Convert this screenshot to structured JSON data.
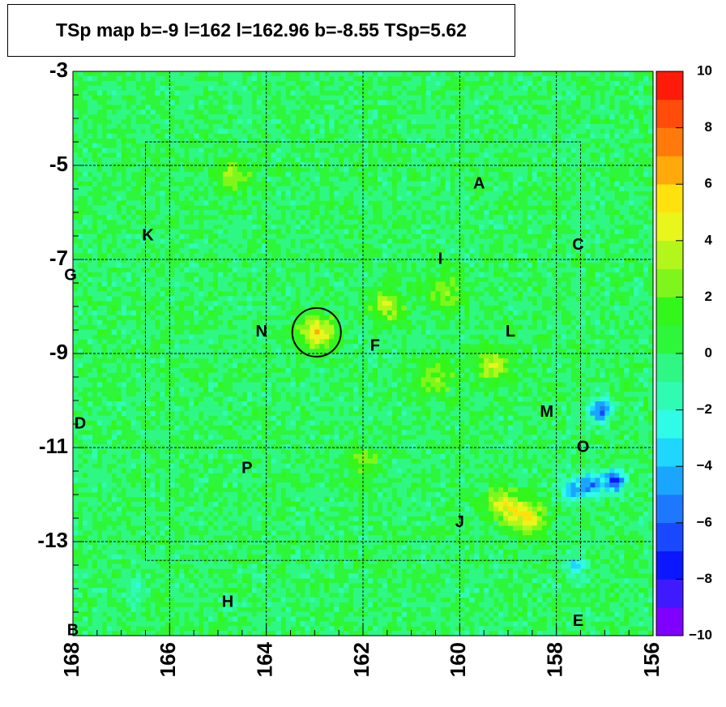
{
  "title": "TSp map b=-9 l=162 l=162.96 b=-8.55 TSp=5.62",
  "colors": {
    "background": "#ffffff",
    "map_base": "#2ef63a",
    "grid": "#000000",
    "palette": [
      "#7f00ff",
      "#3f1aff",
      "#0a17ff",
      "#1a48ff",
      "#1e78ff",
      "#1aa6ff",
      "#1fd6ff",
      "#2ffbe6",
      "#2ffbb3",
      "#2ef784",
      "#2ef63a",
      "#33f61b",
      "#7ff61b",
      "#b3f61b",
      "#e8f61b",
      "#ffe20d",
      "#ffaa0a",
      "#ff7a0a",
      "#ff4c0a",
      "#ff1a0a"
    ]
  },
  "chart_data": {
    "type": "heatmap",
    "x_ticks": [
      "168",
      "166",
      "164",
      "162",
      "160",
      "158",
      "156"
    ],
    "x_tick_values": [
      168,
      166,
      164,
      162,
      160,
      158,
      156
    ],
    "y_ticks": [
      "-3",
      "-5",
      "-7",
      "-9",
      "-11",
      "-13"
    ],
    "y_tick_values": [
      -3,
      -5,
      -7,
      -9,
      -11,
      -13
    ],
    "xlim": [
      168,
      156
    ],
    "ylim": [
      -15,
      -3
    ],
    "colorbar_ticks": [
      "10",
      "8",
      "6",
      "4",
      "2",
      "0",
      "−2",
      "−4",
      "−6",
      "−8",
      "−10"
    ],
    "colorbar_range": [
      -10,
      10
    ],
    "grid": true,
    "source_circle": {
      "l": 162.96,
      "b": -8.55
    },
    "source_labels": [
      {
        "label": "A",
        "l": 159.6,
        "b": -5.4
      },
      {
        "label": "B",
        "l": 168.0,
        "b": -14.9
      },
      {
        "label": "C",
        "l": 157.55,
        "b": -6.7
      },
      {
        "label": "D",
        "l": 167.85,
        "b": -10.5
      },
      {
        "label": "E",
        "l": 157.55,
        "b": -14.7
      },
      {
        "label": "F",
        "l": 161.75,
        "b": -8.85
      },
      {
        "label": "G",
        "l": 168.05,
        "b": -7.35
      },
      {
        "label": "H",
        "l": 164.8,
        "b": -14.3
      },
      {
        "label": "I",
        "l": 160.4,
        "b": -7.0
      },
      {
        "label": "J",
        "l": 160.0,
        "b": -12.6
      },
      {
        "label": "K",
        "l": 166.45,
        "b": -6.5
      },
      {
        "label": "L",
        "l": 158.95,
        "b": -8.55
      },
      {
        "label": "M",
        "l": 158.2,
        "b": -10.25
      },
      {
        "label": "N",
        "l": 164.1,
        "b": -8.55
      },
      {
        "label": "O",
        "l": 157.45,
        "b": -11.0
      },
      {
        "label": "P",
        "l": 164.4,
        "b": -11.45
      }
    ],
    "hotspots": [
      {
        "l": 159.1,
        "b": -12.2,
        "value": 4.5
      },
      {
        "l": 158.6,
        "b": -12.5,
        "value": 5
      },
      {
        "l": 159.3,
        "b": -9.25,
        "value": 4
      },
      {
        "l": 160.5,
        "b": -9.5,
        "value": 3
      },
      {
        "l": 161.5,
        "b": -8.0,
        "value": 3.5
      },
      {
        "l": 162.96,
        "b": -8.55,
        "value": 5.6
      },
      {
        "l": 160.3,
        "b": -7.7,
        "value": 3
      },
      {
        "l": 164.7,
        "b": -5.2,
        "value": 3
      },
      {
        "l": 162.0,
        "b": -11.3,
        "value": 2.5
      }
    ],
    "coldspots": [
      {
        "l": 156.8,
        "b": -11.7,
        "value": -7
      },
      {
        "l": 157.3,
        "b": -11.8,
        "value": -6
      },
      {
        "l": 157.1,
        "b": -10.2,
        "value": -6
      },
      {
        "l": 157.7,
        "b": -11.9,
        "value": -4
      },
      {
        "l": 157.6,
        "b": -13.5,
        "value": -3
      },
      {
        "l": 166.7,
        "b": -14.0,
        "value": -2
      }
    ]
  }
}
